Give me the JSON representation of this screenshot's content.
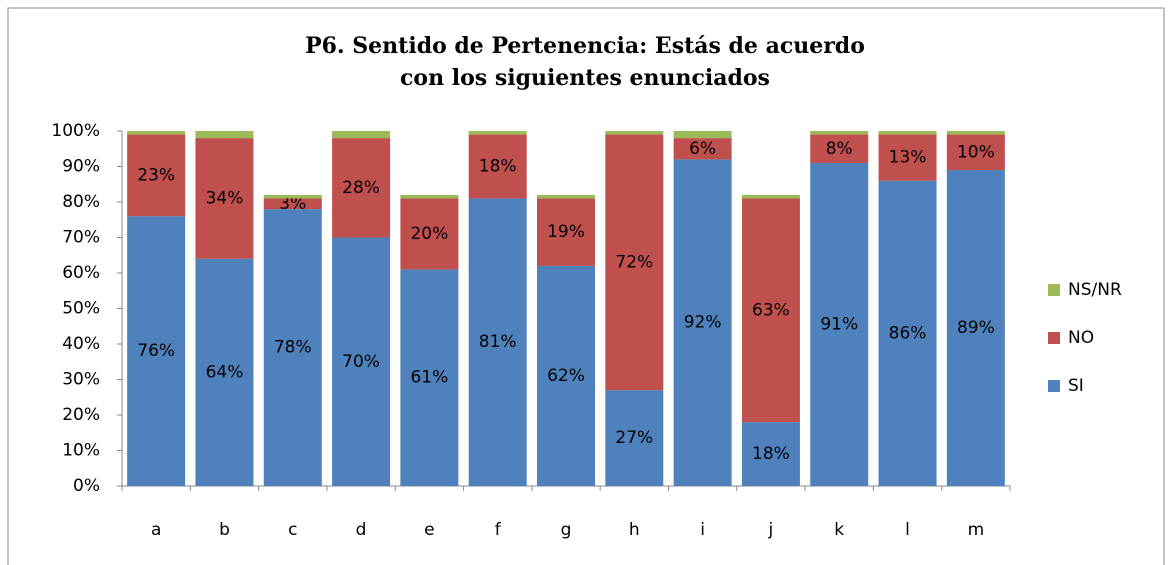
{
  "chart_data": {
    "type": "stacked_bar",
    "title": "P6. Sentido de Pertenencia: Estás de acuerdo con los siguientes enunciados",
    "categories": [
      "a",
      "b",
      "c",
      "d",
      "e",
      "f",
      "g",
      "h",
      "i",
      "j",
      "k",
      "l",
      "m"
    ],
    "series": [
      {
        "name": "SI",
        "color": "#4f81bd",
        "values": [
          76,
          64,
          78,
          70,
          61,
          81,
          62,
          27,
          92,
          18,
          91,
          86,
          89
        ],
        "value_labels": [
          "76%",
          "64%",
          "78%",
          "70%",
          "61%",
          "81%",
          "62%",
          "27%",
          "92%",
          "18%",
          "91%",
          "86%",
          "89%"
        ]
      },
      {
        "name": "NO",
        "color": "#c0504d",
        "values": [
          23,
          34,
          3,
          28,
          20,
          18,
          19,
          72,
          6,
          63,
          8,
          13,
          10
        ],
        "value_labels": [
          "23%",
          "34%",
          "3%",
          "28%",
          "20%",
          "18%",
          "19%",
          "72%",
          "6%",
          "63%",
          "8%",
          "13%",
          "10%"
        ]
      },
      {
        "name": "NS/NR",
        "color": "#9bbb59",
        "values": [
          1,
          2,
          1,
          2,
          1,
          1,
          1,
          1,
          2,
          1,
          1,
          1,
          1
        ]
      }
    ],
    "ylim": [
      0,
      100
    ],
    "yticks": [
      {
        "value": 0,
        "label": "0%"
      },
      {
        "value": 10,
        "label": "10%"
      },
      {
        "value": 20,
        "label": "20%"
      },
      {
        "value": 30,
        "label": "30%"
      },
      {
        "value": 40,
        "label": "40%"
      },
      {
        "value": 50,
        "label": "50%"
      },
      {
        "value": 60,
        "label": "60%"
      },
      {
        "value": 70,
        "label": "70%"
      },
      {
        "value": 80,
        "label": "80%"
      },
      {
        "value": 90,
        "label": "90%"
      },
      {
        "value": 100,
        "label": "100%"
      }
    ],
    "legend": "right"
  }
}
